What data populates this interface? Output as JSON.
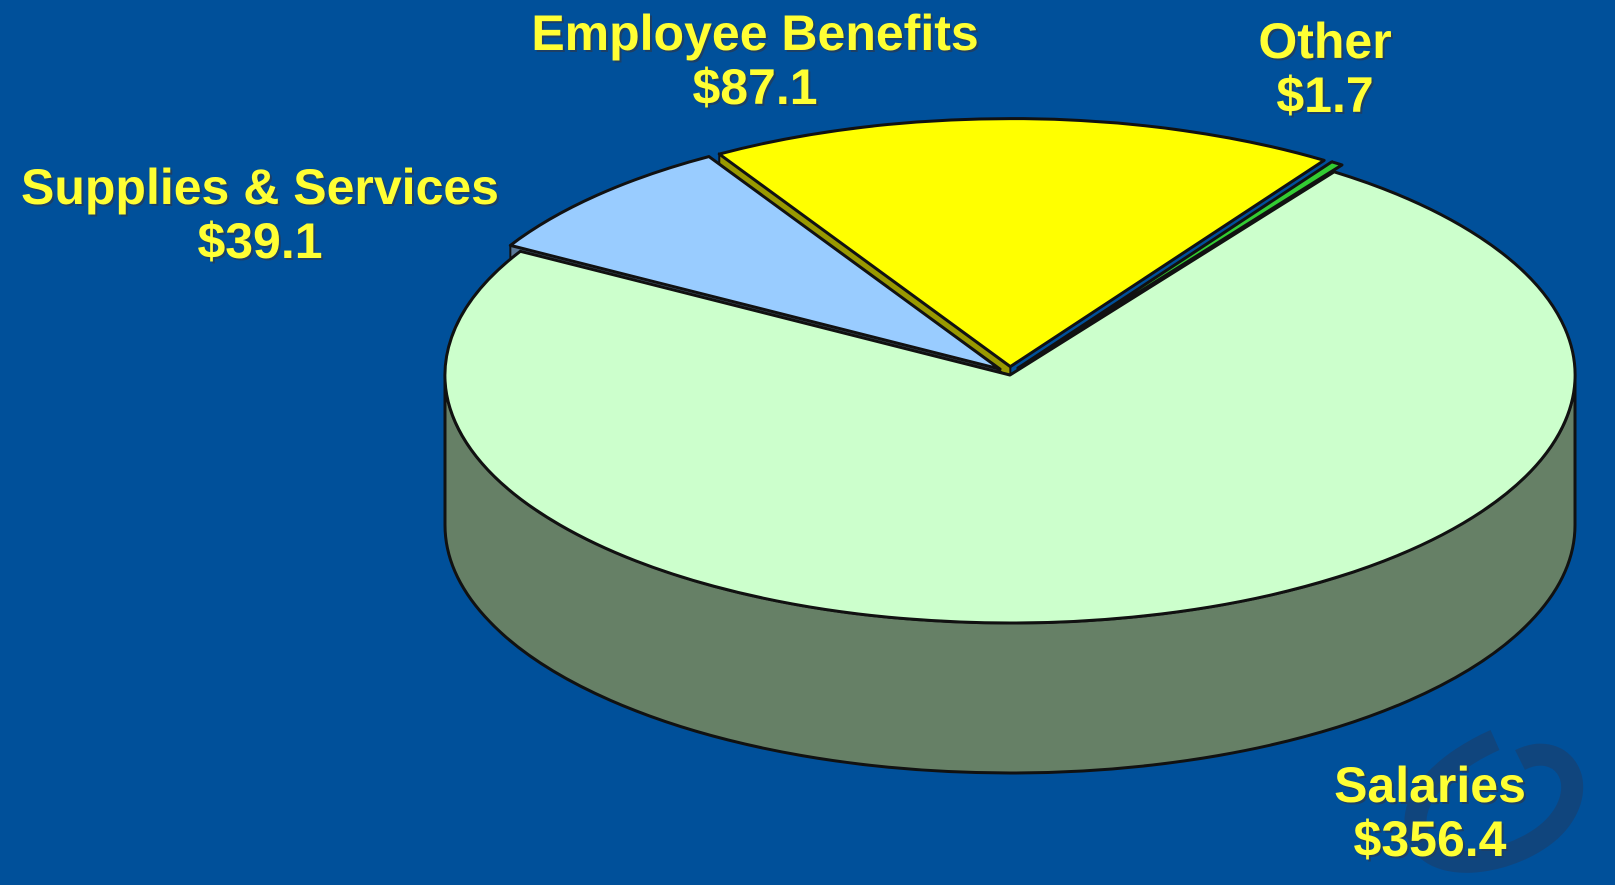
{
  "chart_data": {
    "type": "pie",
    "title": "",
    "units": "$",
    "slices": [
      {
        "label": "Salaries",
        "value_label": "$356.4",
        "value": 356.4,
        "color": "#ccffcc",
        "side_color": "#668066"
      },
      {
        "label": "Supplies & Services",
        "value_label": "$39.1",
        "value": 39.1,
        "color": "#99ccff",
        "side_color": "#5b7a99"
      },
      {
        "label": "Employee Benefits",
        "value_label": "$87.1",
        "value": 87.1,
        "color": "#ffff00",
        "side_color": "#999900"
      },
      {
        "label": "Other",
        "value_label": "$1.7",
        "value": 1.7,
        "color": "#33cc33",
        "side_color": "#1f7a1f"
      }
    ]
  },
  "colors": {
    "background": "#00509a",
    "label_text": "#ffff33"
  }
}
